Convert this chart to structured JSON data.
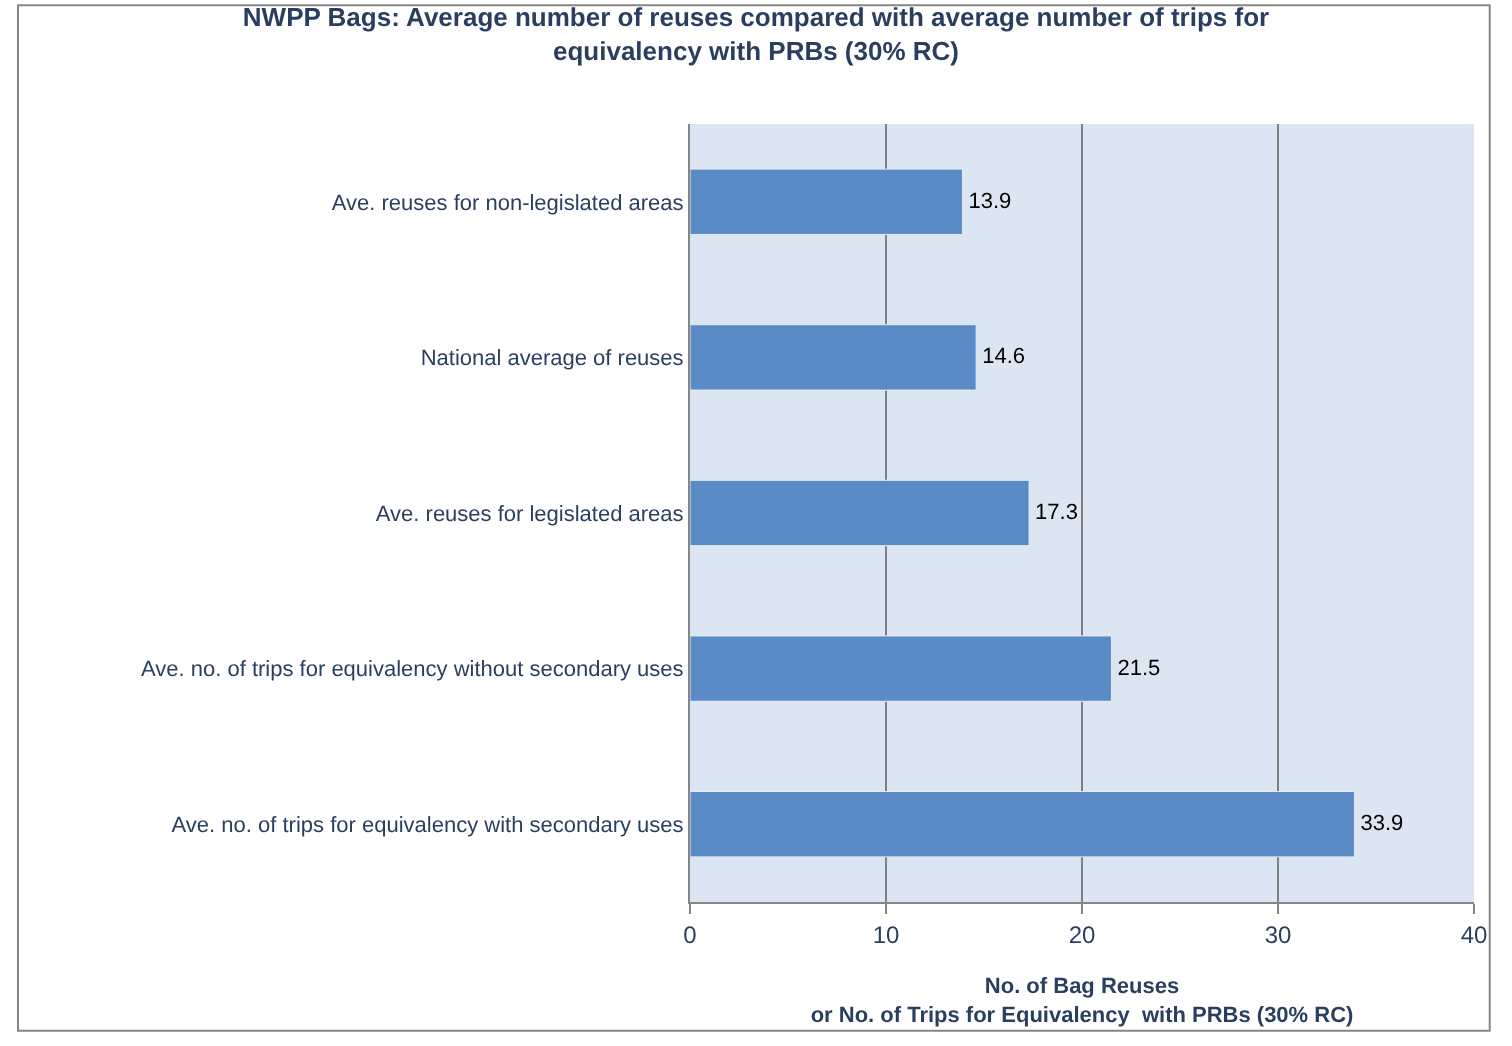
{
  "chart_data": {
    "type": "bar",
    "orientation": "horizontal",
    "title": "NWPP Bags: Average number of reuses compared with average number of trips for\nequivalency with PRBs (30% RC)",
    "xlabel": "No. of Bag Reuses\nor No. of Trips for Equivalency  with PRBs (30% RC)",
    "categories": [
      "Ave. reuses for non-legislated areas",
      "National average of reuses",
      "Ave. reuses for legislated areas",
      "Ave. no. of trips for equivalency without secondary uses",
      "Ave. no. of trips for equivalency with secondary uses"
    ],
    "values": [
      13.9,
      14.6,
      17.3,
      21.5,
      33.9
    ],
    "color": "#5b8bc7",
    "xlim": [
      0,
      40
    ],
    "xticks": [
      0,
      10,
      20,
      30,
      40
    ],
    "grid": "x",
    "data_labels": true
  }
}
